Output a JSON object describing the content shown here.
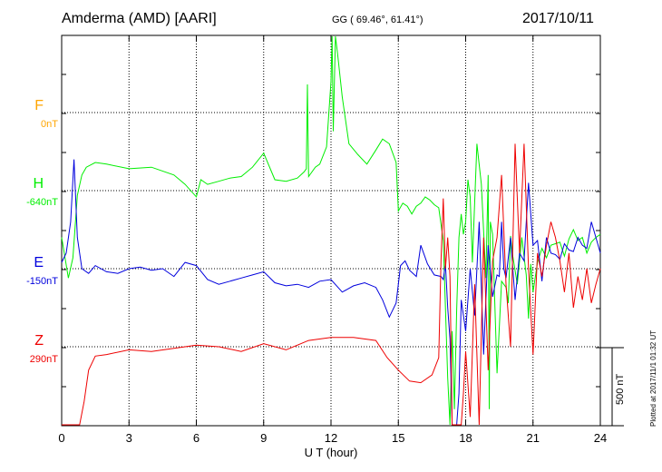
{
  "header": {
    "station": "Amderma (AMD)  [AARI]",
    "coords": "GG ( 69.46°,  61.41°)",
    "date": "2017/10/11"
  },
  "scale_bar": {
    "label": "500 nT"
  },
  "plotted_note": "Plotted at 2017/11/1 01:32 UT",
  "chart_data": {
    "type": "line",
    "xlabel": "U T (hour)",
    "xlim": [
      0,
      24
    ],
    "x_ticks": [
      "0",
      "3",
      "6",
      "9",
      "12",
      "15",
      "18",
      "21",
      "24"
    ],
    "series": [
      {
        "name": "F",
        "base": "0nT",
        "color": "#ffa500",
        "x": [],
        "y": []
      },
      {
        "name": "H",
        "base": "-640nT",
        "color": "#00ee00",
        "x": [
          0,
          0.3,
          0.5,
          0.7,
          0.9,
          1.1,
          1.5,
          2,
          3,
          4,
          5,
          5.5,
          6,
          6.2,
          6.5,
          7,
          7.5,
          8,
          8.5,
          9,
          9.5,
          10,
          10.5,
          10.8,
          10.9,
          10.95,
          11,
          11.3,
          11.5,
          11.8,
          12,
          12.05,
          12.1,
          12.2,
          12.3,
          12.5,
          12.8,
          13.2,
          13.6,
          14,
          14.3,
          14.6,
          14.9,
          15,
          15.2,
          15.4,
          15.6,
          15.8,
          16,
          16.2,
          16.4,
          16.6,
          16.8,
          17,
          17.1,
          17.2,
          17.3,
          17.4,
          17.5,
          17.6,
          17.7,
          17.8,
          17.9,
          18,
          18.1,
          18.2,
          18.3,
          18.5,
          18.7,
          18.9,
          19,
          19.05,
          19.1,
          19.2,
          19.4,
          19.6,
          19.8,
          19.9,
          20,
          20.1,
          20.3,
          20.5,
          20.7,
          20.8,
          20.9,
          21,
          21.2,
          21.4,
          21.6,
          21.8,
          22,
          22.2,
          22.4,
          22.6,
          22.8,
          23,
          23.2,
          23.4,
          23.6,
          23.8,
          24
        ],
        "y": [
          -300,
          -560,
          -430,
          -30,
          100,
          150,
          180,
          170,
          140,
          150,
          100,
          40,
          -40,
          70,
          40,
          60,
          80,
          90,
          150,
          240,
          70,
          60,
          80,
          120,
          140,
          680,
          90,
          150,
          170,
          280,
          700,
          1080,
          380,
          1000,
          870,
          600,
          300,
          230,
          170,
          260,
          330,
          300,
          180,
          -130,
          -80,
          -100,
          -150,
          -100,
          -80,
          -40,
          -60,
          -90,
          -110,
          -320,
          -750,
          -1200,
          -1900,
          -900,
          -1400,
          -760,
          -300,
          -150,
          -280,
          -200,
          70,
          -40,
          -460,
          300,
          40,
          -560,
          100,
          -1400,
          -200,
          -280,
          -1170,
          -580,
          -620,
          -720,
          -290,
          -420,
          -600,
          -300,
          -540,
          -820,
          -470,
          -650,
          -460,
          -370,
          -430,
          -350,
          -340,
          -330,
          -420,
          -310,
          -250,
          -320,
          -300,
          -400,
          -330,
          -300,
          -280
        ]
      },
      {
        "name": "E",
        "base": "-150nT",
        "color": "#0000dd",
        "x": [
          0,
          0.2,
          0.4,
          0.55,
          0.7,
          0.9,
          1.2,
          1.5,
          2,
          2.5,
          3,
          3.5,
          4,
          4.5,
          5,
          5.5,
          6,
          6.5,
          7,
          7.5,
          8,
          8.5,
          9,
          9.5,
          10,
          10.5,
          11,
          11.5,
          12,
          12.5,
          13,
          13.5,
          14,
          14.3,
          14.6,
          14.9,
          15.1,
          15.3,
          15.5,
          15.8,
          16,
          16.3,
          16.6,
          16.9,
          17,
          17.1,
          17.2,
          17.3,
          17.4,
          17.5,
          17.55,
          17.6,
          17.7,
          17.8,
          18,
          18.2,
          18.4,
          18.6,
          18.8,
          19,
          19.2,
          19.4,
          19.5,
          19.6,
          19.7,
          19.8,
          20,
          20.1,
          20.2,
          20.4,
          20.6,
          20.8,
          21,
          21.2,
          21.4,
          21.6,
          21.8,
          22,
          22.2,
          22.4,
          22.6,
          22.8,
          23,
          23.2,
          23.4,
          23.6,
          23.8,
          24
        ],
        "y": [
          40,
          100,
          300,
          700,
          200,
          0,
          -30,
          20,
          -20,
          -30,
          0,
          10,
          -10,
          0,
          -50,
          40,
          20,
          -70,
          -100,
          -80,
          -60,
          -40,
          -20,
          -90,
          -110,
          -100,
          -120,
          -80,
          -70,
          -150,
          -110,
          -90,
          -120,
          -200,
          -310,
          -220,
          20,
          50,
          -10,
          -50,
          150,
          30,
          -40,
          -50,
          -70,
          30,
          -250,
          -450,
          -1100,
          -1500,
          -1800,
          -1300,
          -800,
          -200,
          -400,
          0,
          -300,
          300,
          -550,
          150,
          -180,
          -40,
          -50,
          300,
          0,
          -60,
          200,
          0,
          -200,
          100,
          50,
          550,
          150,
          180,
          -80,
          200,
          100,
          90,
          60,
          160,
          120,
          110,
          200,
          150,
          130,
          300,
          200,
          100
        ]
      },
      {
        "name": "Z",
        "base": "290nT",
        "color": "#ee0000",
        "x": [
          0,
          0.2,
          0.4,
          0.6,
          0.8,
          1,
          1.2,
          1.5,
          2,
          3,
          4,
          5,
          6,
          7,
          8,
          9,
          10,
          11,
          12,
          13,
          14,
          14.5,
          15,
          15.5,
          16,
          16.5,
          16.8,
          16.9,
          17,
          17.1,
          17.2,
          17.3,
          17.4,
          17.5,
          17.6,
          17.7,
          17.8,
          17.9,
          18,
          18.2,
          18.4,
          18.6,
          18.8,
          19,
          19.2,
          19.4,
          19.6,
          19.8,
          20,
          20.2,
          20.4,
          20.6,
          20.8,
          21,
          21.2,
          21.4,
          21.6,
          21.8,
          22,
          22.2,
          22.4,
          22.6,
          22.8,
          23,
          23.2,
          23.4,
          23.6,
          23.8,
          24
        ],
        "y": [
          -700,
          -900,
          -1000,
          -650,
          -500,
          -350,
          -150,
          -60,
          -50,
          -20,
          -30,
          -10,
          10,
          0,
          -30,
          20,
          -20,
          40,
          60,
          60,
          40,
          -70,
          -150,
          -220,
          -230,
          -180,
          -70,
          550,
          950,
          500,
          700,
          450,
          -1000,
          -1600,
          -1000,
          -600,
          -800,
          -300,
          -30,
          -450,
          400,
          -1500,
          700,
          -150,
          550,
          700,
          1100,
          400,
          0,
          1300,
          600,
          1300,
          500,
          -50,
          600,
          450,
          650,
          800,
          700,
          550,
          350,
          600,
          250,
          450,
          300,
          500,
          280,
          400,
          500
        ]
      }
    ]
  }
}
